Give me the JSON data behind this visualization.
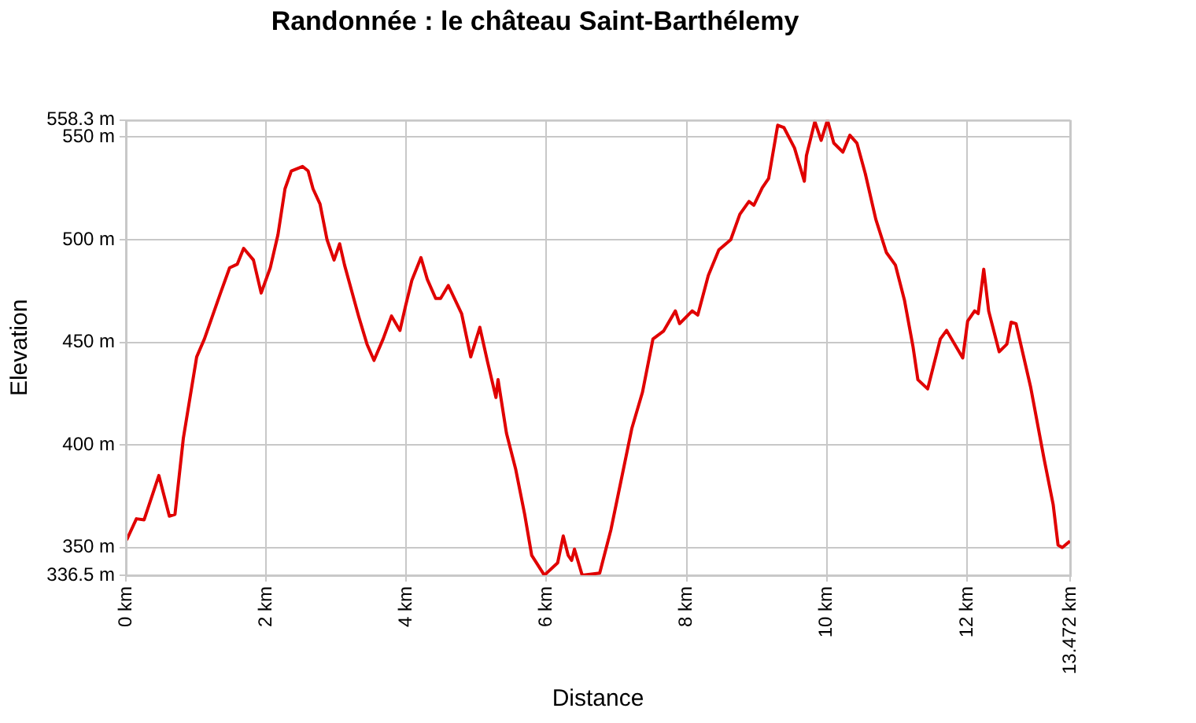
{
  "chart_data": {
    "type": "line",
    "title": "Randonnée : le château Saint-Barthélemy",
    "xlabel": "Distance",
    "ylabel": "Elevation",
    "xlim": [
      0,
      13.472
    ],
    "xticks": [
      {
        "value": 0,
        "label": "0 km"
      },
      {
        "value": 2,
        "label": "2 km"
      },
      {
        "value": 4,
        "label": "4 km"
      },
      {
        "value": 6,
        "label": "6 km"
      },
      {
        "value": 8,
        "label": "8 km"
      },
      {
        "value": 10,
        "label": "10 km"
      },
      {
        "value": 12,
        "label": "12 km"
      },
      {
        "value": 13.472,
        "label": "13.472 km"
      }
    ],
    "ylim": [
      336.5,
      558.3
    ],
    "yticks": [
      {
        "value": 336.5,
        "label": "336.5 m"
      },
      {
        "value": 350,
        "label": "350 m"
      },
      {
        "value": 400,
        "label": "400 m"
      },
      {
        "value": 450,
        "label": "450 m"
      },
      {
        "value": 500,
        "label": "500 m"
      },
      {
        "value": 550,
        "label": "550 m"
      },
      {
        "value": 558.3,
        "label": "558.3 m"
      }
    ],
    "grid": true,
    "legend": false,
    "marker": "none",
    "line_style": "solid",
    "series": [
      {
        "color": "#e00000",
        "x": [
          0.01,
          0.15,
          0.26,
          0.47,
          0.62,
          0.7,
          0.82,
          1.01,
          1.12,
          1.35,
          1.48,
          1.59,
          1.68,
          1.82,
          1.93,
          2.06,
          2.17,
          2.27,
          2.36,
          2.52,
          2.6,
          2.67,
          2.77,
          2.87,
          2.97,
          3.05,
          3.12,
          3.22,
          3.32,
          3.44,
          3.54,
          3.67,
          3.79,
          3.91,
          3.99,
          4.08,
          4.21,
          4.3,
          4.42,
          4.49,
          4.6,
          4.79,
          4.92,
          5.05,
          5.16,
          5.28,
          5.31,
          5.43,
          5.56,
          5.69,
          5.79,
          5.97,
          6.16,
          6.24,
          6.31,
          6.36,
          6.4,
          6.51,
          6.76,
          6.92,
          7.22,
          7.37,
          7.52,
          7.67,
          7.84,
          7.9,
          8.08,
          8.16,
          8.31,
          8.46,
          8.63,
          8.76,
          8.89,
          8.96,
          9.08,
          9.17,
          9.3,
          9.39,
          9.54,
          9.68,
          9.71,
          9.83,
          9.92,
          10.01,
          10.1,
          10.23,
          10.33,
          10.43,
          10.55,
          10.7,
          10.85,
          10.98,
          11.11,
          11.23,
          11.3,
          11.44,
          11.62,
          11.71,
          11.94,
          12.01,
          12.11,
          12.16,
          12.24,
          12.31,
          12.46,
          12.57,
          12.63,
          12.7,
          12.91,
          13.1,
          13.23,
          13.3,
          13.36,
          13.47
        ],
        "values": [
          353.6,
          364.0,
          363.5,
          385.1,
          365.3,
          366.1,
          403.3,
          442.9,
          451.6,
          474.0,
          486.3,
          488.1,
          495.8,
          490.1,
          474.0,
          486.3,
          502.5,
          524.8,
          533.5,
          535.7,
          533.5,
          524.8,
          517.4,
          500.0,
          490.1,
          498.0,
          487.6,
          475.2,
          462.8,
          449.1,
          441.2,
          451.6,
          462.8,
          455.8,
          467.7,
          480.2,
          491.3,
          480.7,
          471.4,
          471.4,
          477.7,
          464.0,
          442.9,
          457.3,
          440.5,
          423.1,
          431.8,
          405.7,
          388.4,
          366.1,
          346.2,
          336.5,
          342.5,
          355.6,
          346.2,
          343.7,
          349.2,
          336.5,
          337.5,
          358.6,
          408.2,
          425.6,
          451.6,
          455.4,
          465.3,
          459.1,
          465.3,
          463.3,
          482.6,
          495.0,
          500.0,
          512.4,
          518.6,
          516.8,
          525.3,
          529.8,
          555.8,
          554.6,
          544.7,
          528.5,
          541.0,
          557.6,
          548.4,
          558.3,
          547.1,
          542.7,
          550.9,
          547.1,
          532.2,
          509.9,
          493.8,
          487.6,
          470.3,
          448.0,
          431.8,
          427.3,
          451.6,
          455.8,
          442.4,
          460.3,
          465.3,
          464.0,
          485.6,
          465.3,
          445.4,
          449.1,
          459.8,
          459.1,
          428.0,
          393.3,
          371.0,
          351.2,
          350.0,
          353.1
        ]
      }
    ]
  }
}
